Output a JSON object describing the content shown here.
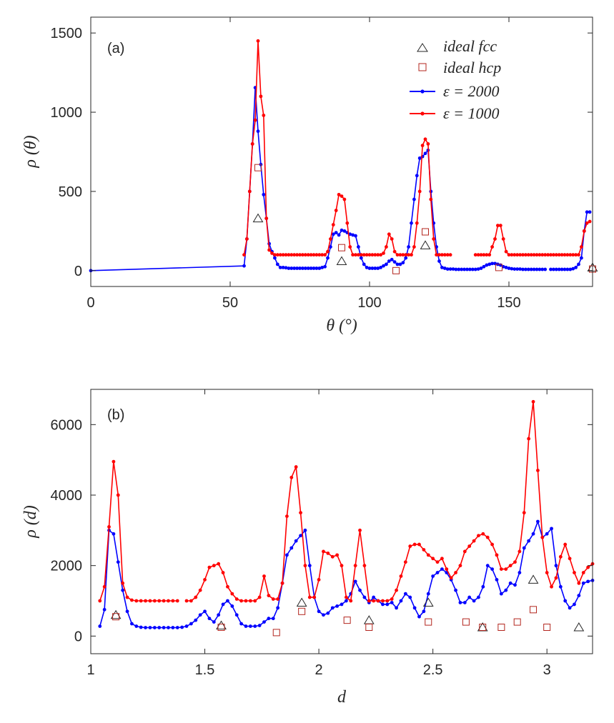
{
  "colors": {
    "blue": "#0000ff",
    "red": "#ff0000",
    "fcc": "#262626",
    "hcp": "#b3261e",
    "axis": "#262626"
  },
  "chart_data": [
    {
      "type": "line",
      "panel_label": "(a)",
      "xlabel": "θ (°)",
      "ylabel": "ρ (θ)",
      "xlim": [
        0,
        180
      ],
      "ylim": [
        -100,
        1600
      ],
      "xticks": [
        0,
        50,
        100,
        150
      ],
      "xtick_labels": [
        "0",
        "50",
        "100",
        "150"
      ],
      "yticks": [
        0,
        500,
        1000,
        1500
      ],
      "ytick_labels": [
        "0",
        "500",
        "1000",
        "1500"
      ],
      "legend": {
        "location": "top-right",
        "entries": [
          {
            "key": "fcc",
            "label": "ideal fcc"
          },
          {
            "key": "hcp",
            "label": "ideal hcp"
          },
          {
            "key": "blue",
            "label": "ε = 2000"
          },
          {
            "key": "red",
            "label": "ε = 1000"
          }
        ]
      },
      "series": [
        {
          "name": "ε = 2000",
          "color_key": "blue",
          "x": [
            0,
            55,
            56,
            57,
            58,
            59,
            60,
            61,
            62,
            63,
            64,
            65,
            66,
            67,
            68,
            69,
            70,
            71,
            72,
            73,
            74,
            75,
            76,
            77,
            78,
            79,
            80,
            81,
            82,
            83,
            84,
            85,
            86,
            87,
            88,
            89,
            90,
            91,
            92,
            93,
            94,
            95,
            96,
            97,
            98,
            99,
            100,
            101,
            102,
            103,
            104,
            105,
            106,
            107,
            108,
            109,
            110,
            111,
            112,
            113,
            114,
            115,
            116,
            117,
            118,
            119,
            120,
            121,
            122,
            123,
            124,
            125,
            126,
            127,
            128,
            129,
            130,
            131,
            132,
            133,
            134,
            135,
            136,
            137,
            138,
            139,
            140,
            141,
            142,
            143,
            144,
            145,
            146,
            147,
            148,
            149,
            150,
            151,
            152,
            153,
            154,
            155,
            156,
            157,
            158,
            159,
            160,
            161,
            162,
            163,
            null,
            165,
            166,
            167,
            168,
            169,
            170,
            171,
            172,
            173,
            174,
            175,
            176,
            177,
            178,
            179
          ],
          "y": [
            0,
            30,
            200,
            500,
            800,
            1155,
            880,
            670,
            480,
            330,
            170,
            120,
            80,
            40,
            20,
            20,
            18,
            15,
            15,
            15,
            15,
            15,
            15,
            15,
            15,
            15,
            15,
            15,
            15,
            20,
            25,
            80,
            150,
            230,
            240,
            225,
            255,
            250,
            240,
            230,
            225,
            220,
            150,
            80,
            40,
            20,
            15,
            15,
            15,
            15,
            20,
            30,
            40,
            60,
            70,
            55,
            40,
            40,
            50,
            80,
            150,
            300,
            450,
            600,
            710,
            720,
            740,
            760,
            500,
            300,
            150,
            60,
            20,
            15,
            10,
            10,
            10,
            8,
            8,
            8,
            8,
            8,
            8,
            8,
            8,
            10,
            15,
            25,
            35,
            40,
            45,
            45,
            40,
            35,
            25,
            20,
            15,
            12,
            10,
            10,
            10,
            8,
            8,
            8,
            8,
            8,
            8,
            8,
            8,
            8,
            null,
            8,
            8,
            8,
            8,
            8,
            8,
            8,
            8,
            12,
            20,
            40,
            80,
            250,
            370,
            370
          ]
        },
        {
          "name": "ε = 1000",
          "color_key": "red",
          "x": [
            55,
            56,
            57,
            58,
            59,
            60,
            61,
            62,
            63,
            64,
            65,
            66,
            67,
            68,
            69,
            70,
            71,
            72,
            73,
            74,
            75,
            76,
            77,
            78,
            79,
            80,
            81,
            82,
            83,
            84,
            85,
            86,
            87,
            88,
            89,
            90,
            91,
            92,
            93,
            94,
            95,
            96,
            97,
            98,
            99,
            100,
            101,
            102,
            103,
            104,
            105,
            106,
            107,
            108,
            109,
            110,
            111,
            112,
            113,
            114,
            115,
            116,
            117,
            118,
            119,
            120,
            121,
            122,
            123,
            124,
            125,
            126,
            127,
            128,
            129,
            null,
            138,
            139,
            140,
            141,
            142,
            143,
            144,
            145,
            146,
            147,
            148,
            149,
            150,
            151,
            152,
            153,
            154,
            155,
            156,
            157,
            158,
            159,
            160,
            161,
            162,
            163,
            164,
            165,
            166,
            167,
            168,
            169,
            170,
            171,
            172,
            173,
            174,
            175,
            176,
            177,
            178,
            179
          ],
          "y": [
            100,
            200,
            500,
            800,
            950,
            1450,
            1100,
            980,
            330,
            130,
            110,
            100,
            100,
            100,
            100,
            100,
            100,
            100,
            100,
            100,
            100,
            100,
            100,
            100,
            100,
            100,
            100,
            100,
            100,
            100,
            120,
            200,
            290,
            380,
            480,
            470,
            450,
            300,
            150,
            100,
            100,
            100,
            100,
            100,
            100,
            100,
            100,
            100,
            100,
            100,
            110,
            150,
            230,
            200,
            120,
            100,
            100,
            100,
            100,
            100,
            100,
            150,
            300,
            500,
            790,
            830,
            800,
            450,
            200,
            100,
            100,
            100,
            100,
            100,
            100,
            null,
            100,
            100,
            100,
            100,
            100,
            100,
            150,
            200,
            285,
            285,
            200,
            120,
            100,
            100,
            100,
            100,
            100,
            100,
            100,
            100,
            100,
            100,
            100,
            100,
            100,
            100,
            100,
            100,
            100,
            100,
            100,
            100,
            100,
            100,
            100,
            100,
            100,
            100,
            150,
            250,
            300,
            310
          ]
        },
        {
          "name": "ideal fcc",
          "color_key": "fcc",
          "marker": "triangle",
          "x": [
            60,
            90,
            120,
            180
          ],
          "y": [
            330,
            60,
            160,
            20
          ]
        },
        {
          "name": "ideal hcp",
          "color_key": "hcp",
          "marker": "square",
          "x": [
            60,
            90,
            109.5,
            120,
            146.4,
            180
          ],
          "y": [
            650,
            145,
            0,
            245,
            20,
            10
          ]
        }
      ]
    },
    {
      "type": "line",
      "panel_label": "(b)",
      "xlabel": "d",
      "ylabel": "ρ (d)",
      "xlim": [
        1,
        3.2
      ],
      "ylim": [
        -500,
        7000
      ],
      "xticks": [
        1,
        1.5,
        2,
        2.5,
        3
      ],
      "xtick_labels": [
        "1",
        "1.5",
        "2",
        "2.5",
        "3"
      ],
      "yticks": [
        0,
        2000,
        4000,
        6000
      ],
      "ytick_labels": [
        "0",
        "2000",
        "4000",
        "6000"
      ],
      "series": [
        {
          "name": "ε = 2000",
          "color_key": "blue",
          "x": [
            1.04,
            1.06,
            1.08,
            1.1,
            1.12,
            1.14,
            1.16,
            1.18,
            1.2,
            1.22,
            1.24,
            1.26,
            1.28,
            1.3,
            1.32,
            1.34,
            1.36,
            1.38,
            1.4,
            1.42,
            1.44,
            1.46,
            1.48,
            1.5,
            1.52,
            1.54,
            1.56,
            1.58,
            1.6,
            1.62,
            1.64,
            1.66,
            1.68,
            1.7,
            1.72,
            1.74,
            1.76,
            1.78,
            1.8,
            1.82,
            1.84,
            1.86,
            1.88,
            1.9,
            1.92,
            1.94,
            1.96,
            1.98,
            2.0,
            2.02,
            2.04,
            2.06,
            2.08,
            2.1,
            2.12,
            2.14,
            2.16,
            2.18,
            2.2,
            2.22,
            2.24,
            2.26,
            2.28,
            2.3,
            2.32,
            2.34,
            2.36,
            2.38,
            2.4,
            2.42,
            2.44,
            2.46,
            2.48,
            2.5,
            2.52,
            2.54,
            2.56,
            2.58,
            2.6,
            2.62,
            2.64,
            2.66,
            2.68,
            2.7,
            2.72,
            2.74,
            2.76,
            2.78,
            2.8,
            2.82,
            2.84,
            2.86,
            2.88,
            2.9,
            2.92,
            2.94,
            2.96,
            2.98,
            3.0,
            3.02,
            3.04,
            3.06,
            3.08,
            3.1,
            3.12,
            3.14,
            3.16,
            3.18,
            3.2
          ],
          "y": [
            280,
            750,
            3000,
            2900,
            2100,
            1300,
            700,
            350,
            280,
            250,
            240,
            240,
            240,
            240,
            240,
            240,
            240,
            240,
            250,
            280,
            350,
            450,
            600,
            700,
            500,
            400,
            600,
            900,
            1000,
            850,
            600,
            350,
            280,
            280,
            280,
            300,
            400,
            500,
            500,
            800,
            1500,
            2300,
            2500,
            2700,
            2850,
            3000,
            2000,
            1100,
            700,
            600,
            650,
            800,
            850,
            900,
            1000,
            1200,
            1550,
            1300,
            1100,
            950,
            1100,
            1000,
            900,
            900,
            950,
            800,
            1000,
            1200,
            1100,
            800,
            550,
            700,
            1200,
            1700,
            1800,
            1900,
            1800,
            1600,
            1300,
            950,
            950,
            1100,
            1000,
            1100,
            1400,
            2000,
            1900,
            1600,
            1200,
            1300,
            1500,
            1450,
            1800,
            2500,
            2700,
            2900,
            3250,
            2800,
            2900,
            3050,
            2000,
            1400,
            1000,
            800,
            900,
            1150,
            1500,
            1550,
            1580
          ]
        },
        {
          "name": "ε = 1000",
          "color_key": "red",
          "x": [
            1.04,
            1.06,
            1.08,
            1.1,
            1.12,
            1.14,
            1.16,
            1.18,
            1.2,
            1.22,
            1.24,
            1.26,
            1.28,
            1.3,
            1.32,
            1.34,
            1.36,
            1.38,
            null,
            1.42,
            1.44,
            1.46,
            1.48,
            1.5,
            1.52,
            1.54,
            1.56,
            1.58,
            1.6,
            1.62,
            1.64,
            1.66,
            1.68,
            1.7,
            1.72,
            1.74,
            1.76,
            1.78,
            1.8,
            1.82,
            1.84,
            1.86,
            1.88,
            1.9,
            1.92,
            1.94,
            1.96,
            1.98,
            2.0,
            2.02,
            2.04,
            2.06,
            2.08,
            2.1,
            2.12,
            2.14,
            2.16,
            2.18,
            2.2,
            2.22,
            2.24,
            2.26,
            2.28,
            2.3,
            2.32,
            2.34,
            2.36,
            2.38,
            2.4,
            2.42,
            2.44,
            2.46,
            2.48,
            2.5,
            2.52,
            2.54,
            2.56,
            2.58,
            2.6,
            2.62,
            2.64,
            2.66,
            2.68,
            2.7,
            2.72,
            2.74,
            2.76,
            2.78,
            2.8,
            2.82,
            2.84,
            2.86,
            2.88,
            2.9,
            2.92,
            2.94,
            2.96,
            2.98,
            3.0,
            3.02,
            3.04,
            3.06,
            3.08,
            3.1,
            3.12,
            3.14,
            3.16,
            3.18,
            3.2
          ],
          "y": [
            1000,
            1400,
            3100,
            4950,
            4000,
            1500,
            1100,
            1020,
            1000,
            1000,
            1000,
            1000,
            1000,
            1000,
            1000,
            1000,
            1000,
            1000,
            null,
            1000,
            1000,
            1100,
            1300,
            1600,
            1950,
            2000,
            2050,
            1800,
            1400,
            1200,
            1050,
            1000,
            1000,
            1000,
            1000,
            1100,
            1700,
            1150,
            1050,
            1050,
            1500,
            3400,
            4500,
            4800,
            3500,
            2000,
            1100,
            1100,
            1600,
            2400,
            2350,
            2250,
            2300,
            2000,
            1100,
            1000,
            2000,
            3000,
            2000,
            1000,
            1000,
            1000,
            1000,
            1000,
            1050,
            1300,
            1700,
            2100,
            2550,
            2600,
            2600,
            2450,
            2300,
            2200,
            2100,
            2200,
            1900,
            1650,
            1800,
            2000,
            2400,
            2550,
            2700,
            2850,
            2900,
            2800,
            2600,
            2300,
            1900,
            1900,
            2000,
            2100,
            2400,
            3500,
            5600,
            6650,
            4700,
            2800,
            1800,
            1400,
            1650,
            2250,
            2600,
            2200,
            1800,
            1500,
            1800,
            1950,
            2050
          ]
        },
        {
          "name": "ideal fcc",
          "color_key": "fcc",
          "marker": "triangle",
          "x": [
            1.11,
            1.572,
            1.925,
            2.22,
            2.48,
            2.718,
            2.94,
            3.14
          ],
          "y": [
            600,
            300,
            950,
            450,
            950,
            250,
            1600,
            250
          ]
        },
        {
          "name": "ideal hcp",
          "color_key": "hcp",
          "marker": "square",
          "x": [
            1.11,
            1.572,
            1.814,
            1.925,
            2.124,
            2.22,
            2.48,
            2.645,
            2.718,
            2.8,
            2.87,
            2.94,
            3.0
          ],
          "y": [
            550,
            250,
            100,
            700,
            450,
            250,
            400,
            400,
            250,
            250,
            400,
            750,
            250
          ]
        }
      ]
    }
  ]
}
